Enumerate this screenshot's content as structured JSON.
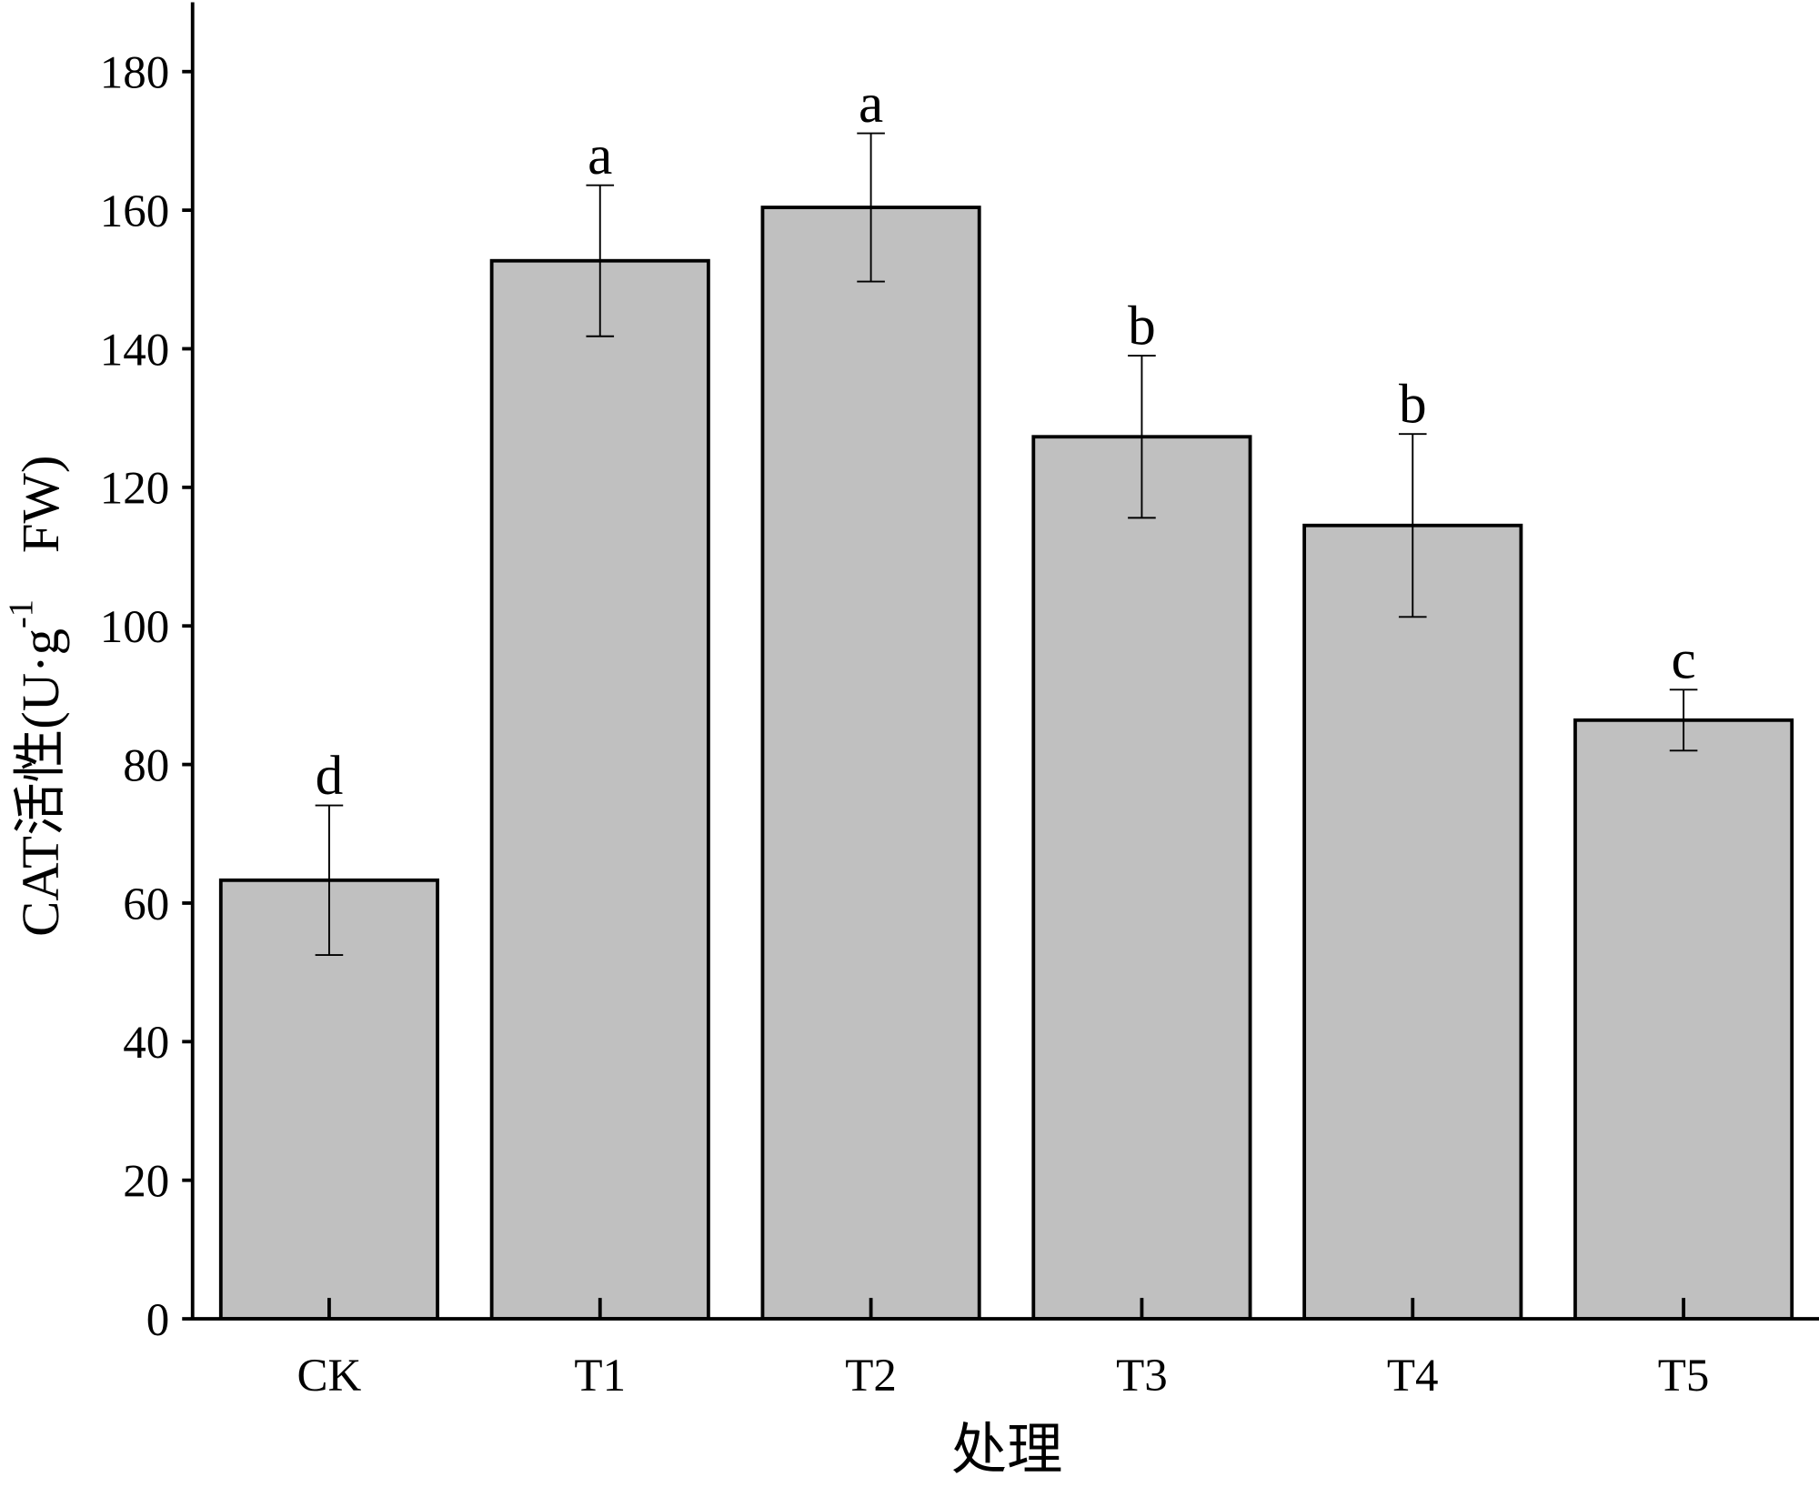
{
  "chart_data": {
    "type": "bar",
    "categories": [
      "CK",
      "T1",
      "T2",
      "T3",
      "T4",
      "T5"
    ],
    "values": [
      63.3,
      152.7,
      160.4,
      127.3,
      114.5,
      86.4
    ],
    "errors": [
      10.8,
      10.9,
      10.7,
      11.7,
      13.2,
      4.4
    ],
    "annotations": [
      "d",
      "a",
      "a",
      "b",
      "b",
      "c"
    ],
    "color": "#c0c0c0",
    "ylim": [
      0,
      190
    ],
    "yticks": [
      0,
      20,
      40,
      60,
      80,
      100,
      120,
      140,
      160,
      180
    ],
    "xlabel": "处理",
    "ylabel": [
      "CAT活性(U·g",
      "-1",
      "FW)"
    ]
  }
}
